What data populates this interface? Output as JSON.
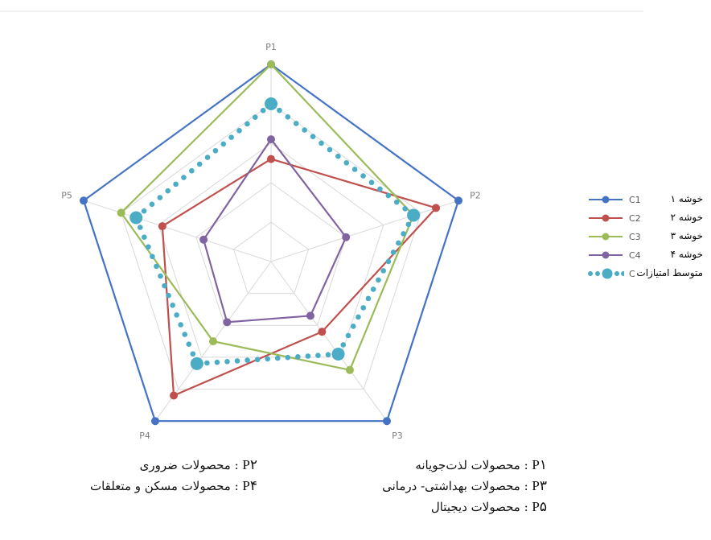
{
  "chart_data": {
    "type": "radar",
    "axes": [
      "P1",
      "P2",
      "P3",
      "P4",
      "P5"
    ],
    "rmax": 5,
    "rings": [
      1,
      2,
      3,
      4,
      5
    ],
    "series": [
      {
        "name": "C1",
        "values": [
          5.0,
          5.0,
          5.0,
          5.0,
          5.0
        ],
        "color": "#4472C4"
      },
      {
        "name": "C2",
        "values": [
          2.6,
          4.4,
          2.2,
          4.2,
          2.9
        ],
        "color": "#C0504D"
      },
      {
        "name": "C3",
        "values": [
          5.0,
          3.8,
          3.4,
          2.5,
          4.0
        ],
        "color": "#9BBB59"
      },
      {
        "name": "C4",
        "values": [
          3.1,
          2.0,
          1.7,
          1.9,
          1.8
        ],
        "color": "#8064A2"
      },
      {
        "name": "C",
        "values": [
          4.0,
          3.8,
          2.9,
          3.2,
          3.6
        ],
        "color": "#4BACC6",
        "style": "dotted"
      }
    ]
  },
  "legend": [
    {
      "code": "C1",
      "label": "خوشه ۱"
    },
    {
      "code": "C2",
      "label": "خوشه ۲"
    },
    {
      "code": "C3",
      "label": "خوشه ۳"
    },
    {
      "code": "C4",
      "label": "خوشه ۴"
    },
    {
      "code": "C",
      "label": "متوسط امتیازات"
    }
  ],
  "notes": {
    "right": [
      {
        "key": "P۱",
        "text": " : محصولات لذت‌جویانه"
      },
      {
        "key": "P۳",
        "text": " : محصولات بهداشتی- درمانی"
      },
      {
        "key": "P۵",
        "text": " : محصولات دیجیتال"
      }
    ],
    "left": [
      {
        "key": "P۲",
        "text": " : محصولات ضروری"
      },
      {
        "key": "P۴",
        "text": " : محصولات مسکن و متعلقات"
      }
    ]
  }
}
